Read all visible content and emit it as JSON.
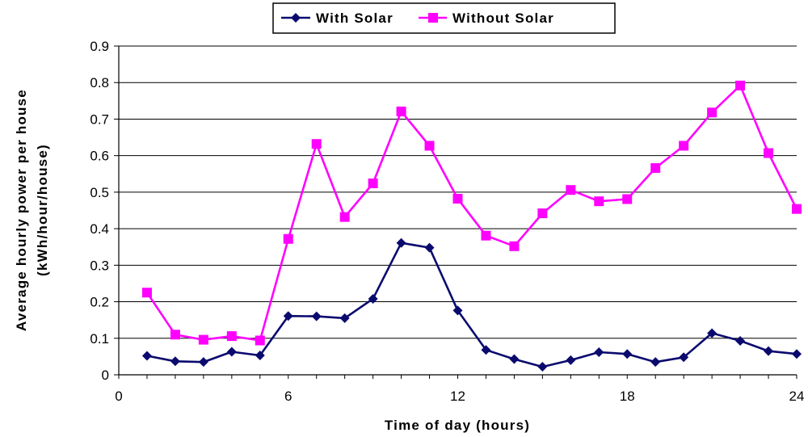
{
  "chart_data": {
    "type": "line",
    "title": "",
    "xlabel": "Time of day (hours)",
    "ylabel_line1": "Average hourly power per house",
    "ylabel_line2": "(kWh/hour/house)",
    "xlim": [
      0,
      24
    ],
    "ylim": [
      0,
      0.9
    ],
    "x_ticks": [
      0,
      6,
      12,
      18,
      24
    ],
    "x_tick_labels": [
      "0",
      "6",
      "12",
      "18",
      "24"
    ],
    "y_ticks": [
      0,
      0.1,
      0.2,
      0.3,
      0.4,
      0.5,
      0.6,
      0.7,
      0.8,
      0.9
    ],
    "y_tick_labels": [
      "0",
      "0.1",
      "0.2",
      "0.3",
      "0.4",
      "0.5",
      "0.6",
      "0.7",
      "0.8",
      "0.9"
    ],
    "grid": "horizontal",
    "legend_position": "top-center",
    "x": [
      1,
      2,
      3,
      4,
      5,
      6,
      7,
      8,
      9,
      10,
      11,
      12,
      13,
      14,
      15,
      16,
      17,
      18,
      19,
      20,
      21,
      22,
      23,
      24
    ],
    "series": [
      {
        "name": "With Solar",
        "color": "#0a0a6e",
        "marker": "diamond",
        "values": [
          0.052,
          0.037,
          0.035,
          0.063,
          0.053,
          0.161,
          0.16,
          0.155,
          0.208,
          0.361,
          0.348,
          0.176,
          0.068,
          0.043,
          0.022,
          0.04,
          0.062,
          0.057,
          0.035,
          0.048,
          0.114,
          0.093,
          0.065,
          0.057
        ]
      },
      {
        "name": "Without Solar",
        "color": "#ff00ff",
        "marker": "square",
        "values": [
          0.225,
          0.11,
          0.096,
          0.106,
          0.094,
          0.372,
          0.632,
          0.432,
          0.524,
          0.721,
          0.627,
          0.482,
          0.381,
          0.352,
          0.442,
          0.506,
          0.475,
          0.481,
          0.566,
          0.627,
          0.718,
          0.792,
          0.607,
          0.454
        ]
      }
    ]
  }
}
